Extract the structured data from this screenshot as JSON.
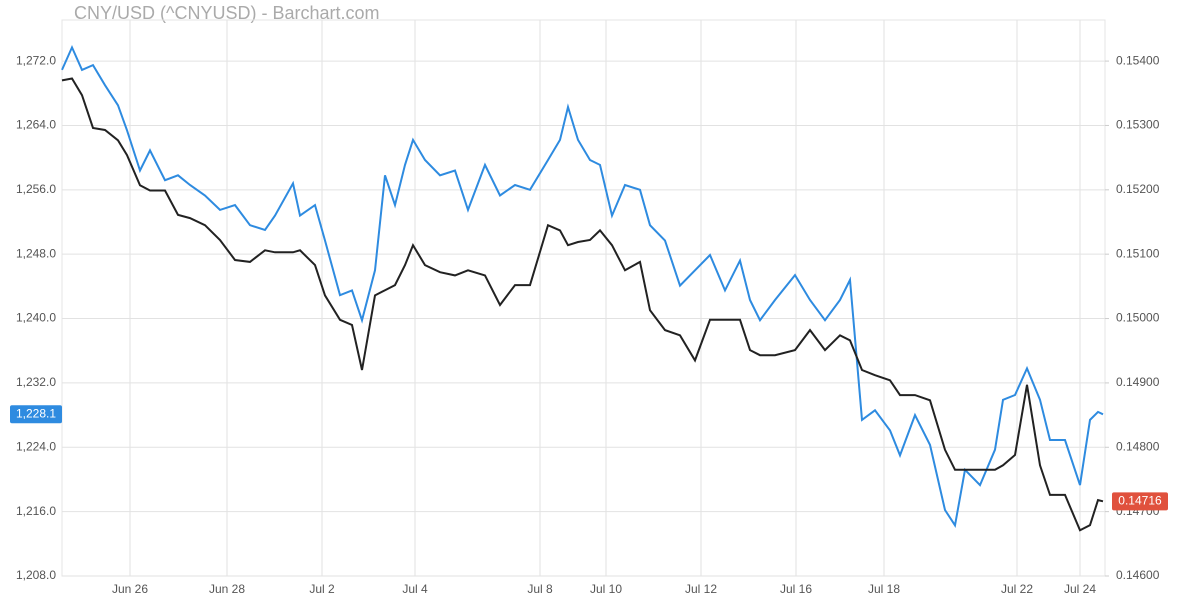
{
  "chart_data": {
    "type": "line",
    "title": "CNY/USD (^CNYUSD) - Barchart.com",
    "grid": true,
    "xlim": [
      0,
      1043
    ],
    "xticks": [
      {
        "value": 68,
        "label": "Jun 26"
      },
      {
        "value": 165,
        "label": "Jun 28"
      },
      {
        "value": 260,
        "label": "Jul 2"
      },
      {
        "value": 353,
        "label": "Jul 4"
      },
      {
        "value": 478,
        "label": "Jul 8"
      },
      {
        "value": 544,
        "label": "Jul 10"
      },
      {
        "value": 639,
        "label": "Jul 12"
      },
      {
        "value": 734,
        "label": "Jul 16"
      },
      {
        "value": 822,
        "label": "Jul 18"
      },
      {
        "value": 955,
        "label": "Jul 22"
      },
      {
        "value": 1018,
        "label": "Jul 24"
      }
    ],
    "ylim": [
      1208,
      1274
    ],
    "yticks": [
      {
        "value": 1208,
        "label": "1,208.0"
      },
      {
        "value": 1216,
        "label": "1,216.0"
      },
      {
        "value": 1224,
        "label": "1,224.0"
      },
      {
        "value": 1232,
        "label": "1,232.0"
      },
      {
        "value": 1240,
        "label": "1,240.0"
      },
      {
        "value": 1248,
        "label": "1,248.0"
      },
      {
        "value": 1256,
        "label": "1,256.0"
      },
      {
        "value": 1264,
        "label": "1,264.0"
      },
      {
        "value": 1272,
        "label": "1,272.0"
      }
    ],
    "y2lim": [
      0.146,
      0.15425
    ],
    "y2ticks": [
      {
        "value": 0.146,
        "label": "0.14600"
      },
      {
        "value": 0.147,
        "label": "0.14700"
      },
      {
        "value": 0.148,
        "label": "0.14800"
      },
      {
        "value": 0.149,
        "label": "0.14900"
      },
      {
        "value": 0.15,
        "label": "0.15000"
      },
      {
        "value": 0.151,
        "label": "0.15100"
      },
      {
        "value": 0.152,
        "label": "0.15200"
      },
      {
        "value": 0.153,
        "label": "0.15300"
      },
      {
        "value": 0.154,
        "label": "0.15400"
      }
    ],
    "x": [
      0,
      10,
      20,
      31,
      43,
      56,
      65,
      78,
      88,
      103,
      116,
      128,
      143,
      158,
      173,
      188,
      203,
      213,
      231,
      238,
      253,
      263,
      278,
      290,
      300,
      313,
      323,
      333,
      343,
      351,
      363,
      378,
      393,
      406,
      423,
      438,
      453,
      468,
      486,
      498,
      506,
      516,
      528,
      538,
      550,
      563,
      578,
      588,
      603,
      618,
      633,
      648,
      663,
      678,
      688,
      698,
      713,
      733,
      748,
      763,
      778,
      788,
      800,
      813,
      828,
      838,
      853,
      868,
      883,
      893,
      903,
      918,
      933,
      941,
      953,
      965,
      978,
      988,
      1003,
      1018,
      1028,
      1036,
      1041
    ],
    "series": [
      {
        "color": "#2e8be0",
        "axis": "y",
        "last_label": "1,228.1",
        "label_color": "#2e8be0",
        "values": [
          1270.9,
          1273.7,
          1270.9,
          1271.5,
          1269,
          1266.5,
          1263.4,
          1258.4,
          1260.9,
          1257.2,
          1257.8,
          1256.6,
          1255.3,
          1253.5,
          1254.1,
          1251.6,
          1251,
          1252.8,
          1256.8,
          1252.8,
          1254.1,
          1249.7,
          1242.9,
          1243.5,
          1239.8,
          1246,
          1257.8,
          1254.1,
          1259.1,
          1262.2,
          1259.7,
          1257.8,
          1258.4,
          1253.5,
          1259.1,
          1255.3,
          1256.6,
          1256,
          1259.7,
          1262.2,
          1266.3,
          1262.2,
          1259.7,
          1259.1,
          1252.8,
          1256.6,
          1256,
          1251.6,
          1249.7,
          1244.1,
          1246,
          1247.9,
          1243.5,
          1247.2,
          1242.3,
          1239.8,
          1242.3,
          1245.4,
          1242.3,
          1239.8,
          1242.3,
          1244.8,
          1227.4,
          1228.6,
          1226.1,
          1223,
          1228,
          1224.3,
          1216.2,
          1214.3,
          1221.2,
          1219.3,
          1223.7,
          1229.9,
          1230.5,
          1233.8,
          1229.9,
          1224.9,
          1224.9,
          1219.3,
          1227.4,
          1228.4,
          1228.1
        ]
      },
      {
        "color": "#222222",
        "axis": "y2",
        "last_label": "0.14716",
        "label_color": "#e0513d",
        "values": [
          0.1537,
          0.15373,
          0.15347,
          0.15296,
          0.15293,
          0.15277,
          0.15254,
          0.15207,
          0.15199,
          0.15199,
          0.15161,
          0.15156,
          0.15145,
          0.15122,
          0.15091,
          0.15088,
          0.15106,
          0.15103,
          0.15103,
          0.15106,
          0.15083,
          0.15036,
          0.14998,
          0.1499,
          0.1492,
          0.15036,
          0.15044,
          0.15052,
          0.15083,
          0.15114,
          0.15083,
          0.15072,
          0.15067,
          0.15075,
          0.15067,
          0.15021,
          0.15052,
          0.15052,
          0.15145,
          0.15137,
          0.15114,
          0.15119,
          0.15122,
          0.15137,
          0.15114,
          0.15075,
          0.15088,
          0.15013,
          0.14982,
          0.14974,
          0.14935,
          0.14998,
          0.14998,
          0.14998,
          0.14951,
          0.14943,
          0.14943,
          0.14951,
          0.14982,
          0.14951,
          0.14974,
          0.14966,
          0.1492,
          0.14912,
          0.14904,
          0.14881,
          0.14881,
          0.14873,
          0.14796,
          0.14765,
          0.14765,
          0.14765,
          0.14765,
          0.14772,
          0.14788,
          0.14897,
          0.14772,
          0.14726,
          0.14726,
          0.14671,
          0.14679,
          0.14718,
          0.14716
        ]
      }
    ]
  }
}
